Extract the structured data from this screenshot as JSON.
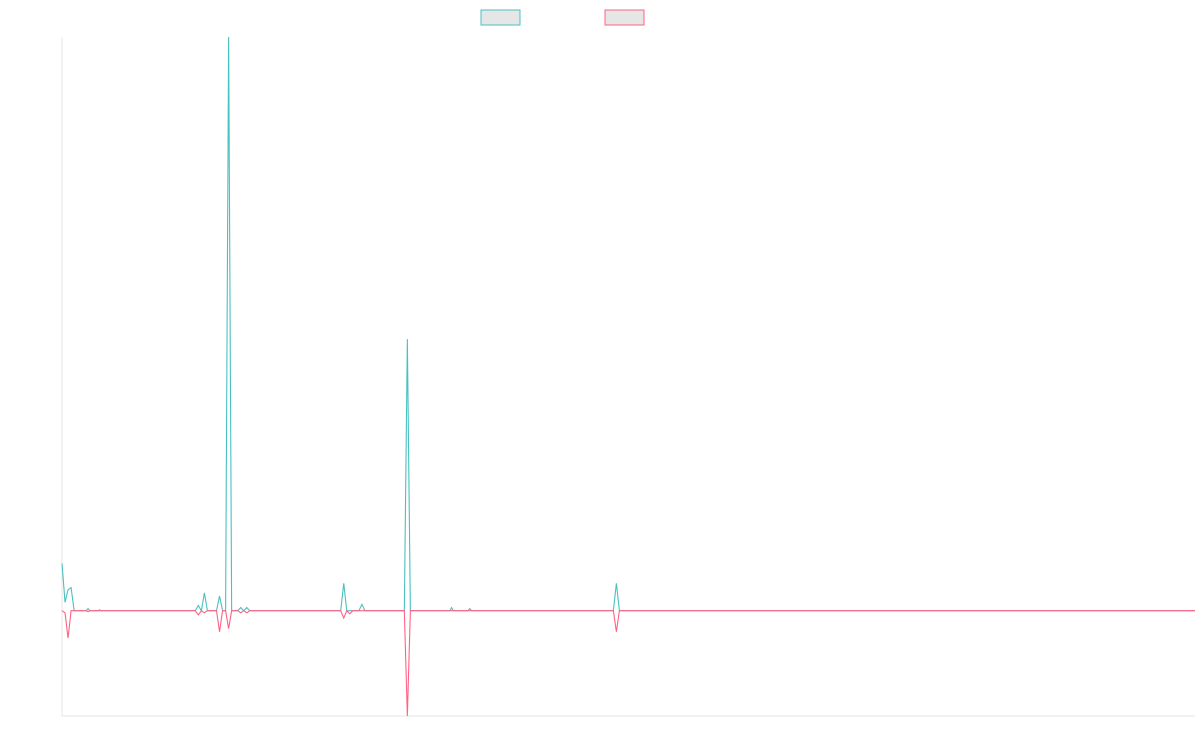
{
  "colors": {
    "background": "#ffffff",
    "axis": "#e4e4e4",
    "series_a": "#4bc0c0",
    "series_b": "#ff6384",
    "legend_fill": "#e6e6e6"
  },
  "chart_data": {
    "type": "line",
    "title": "",
    "xlabel": "",
    "ylabel": "",
    "grid": false,
    "legend_position": "top-center",
    "x_range": [
      0,
      187
    ],
    "y_range": [
      -1,
      5.45
    ],
    "series": [
      {
        "color": "#4bc0c0",
        "points": [
          [
            0,
            0.45
          ],
          [
            0.5,
            0.08
          ],
          [
            1,
            0.2
          ],
          [
            1.5,
            0.22
          ],
          [
            2,
            0.0
          ],
          [
            4,
            0.0
          ],
          [
            4.3,
            0.02
          ],
          [
            4.6,
            0.0
          ],
          [
            6,
            0.0
          ],
          [
            6.2,
            0.01
          ],
          [
            6.4,
            0.0
          ],
          [
            22,
            0.0
          ],
          [
            22.5,
            0.05
          ],
          [
            23,
            0.0
          ],
          [
            23.5,
            0.17
          ],
          [
            24,
            0.0
          ],
          [
            25.5,
            0.0
          ],
          [
            26,
            0.14
          ],
          [
            26.5,
            0.0
          ],
          [
            27,
            0.0
          ],
          [
            27.5,
            5.45
          ],
          [
            28,
            0.0
          ],
          [
            29,
            0.0
          ],
          [
            29.5,
            0.03
          ],
          [
            30,
            0.0
          ],
          [
            30.5,
            0.03
          ],
          [
            31,
            0.0
          ],
          [
            46,
            0.0
          ],
          [
            46.5,
            0.26
          ],
          [
            47,
            0.0
          ],
          [
            49,
            0.0
          ],
          [
            49.5,
            0.06
          ],
          [
            50,
            0.0
          ],
          [
            56.5,
            0.0
          ],
          [
            57,
            2.58
          ],
          [
            57.5,
            0.0
          ],
          [
            64,
            0.0
          ],
          [
            64.3,
            0.03
          ],
          [
            64.6,
            0.0
          ],
          [
            67,
            0.0
          ],
          [
            67.3,
            0.02
          ],
          [
            67.6,
            0.0
          ],
          [
            91,
            0.0
          ],
          [
            91.5,
            0.26
          ],
          [
            92,
            0.0
          ],
          [
            187,
            0.0
          ]
        ]
      },
      {
        "color": "#ff6384",
        "points": [
          [
            0,
            0.0
          ],
          [
            0.5,
            -0.02
          ],
          [
            1,
            -0.26
          ],
          [
            1.5,
            0.0
          ],
          [
            4,
            0.0
          ],
          [
            4.3,
            -0.01
          ],
          [
            4.6,
            0.0
          ],
          [
            22,
            0.0
          ],
          [
            22.5,
            -0.04
          ],
          [
            23,
            0.0
          ],
          [
            23.5,
            -0.02
          ],
          [
            24,
            0.0
          ],
          [
            25.5,
            0.0
          ],
          [
            26,
            -0.2
          ],
          [
            26.5,
            0.0
          ],
          [
            27,
            0.0
          ],
          [
            27.5,
            -0.17
          ],
          [
            28,
            0.0
          ],
          [
            29,
            0.0
          ],
          [
            29.5,
            -0.02
          ],
          [
            30,
            0.0
          ],
          [
            30.5,
            -0.02
          ],
          [
            31,
            0.0
          ],
          [
            46,
            0.0
          ],
          [
            46.5,
            -0.07
          ],
          [
            47,
            0.0
          ],
          [
            47.5,
            -0.03
          ],
          [
            48,
            0.0
          ],
          [
            56.5,
            0.0
          ],
          [
            57,
            -1.0
          ],
          [
            57.5,
            0.0
          ],
          [
            91,
            0.0
          ],
          [
            91.5,
            -0.2
          ],
          [
            92,
            0.0
          ],
          [
            187,
            0.0
          ]
        ]
      }
    ]
  }
}
